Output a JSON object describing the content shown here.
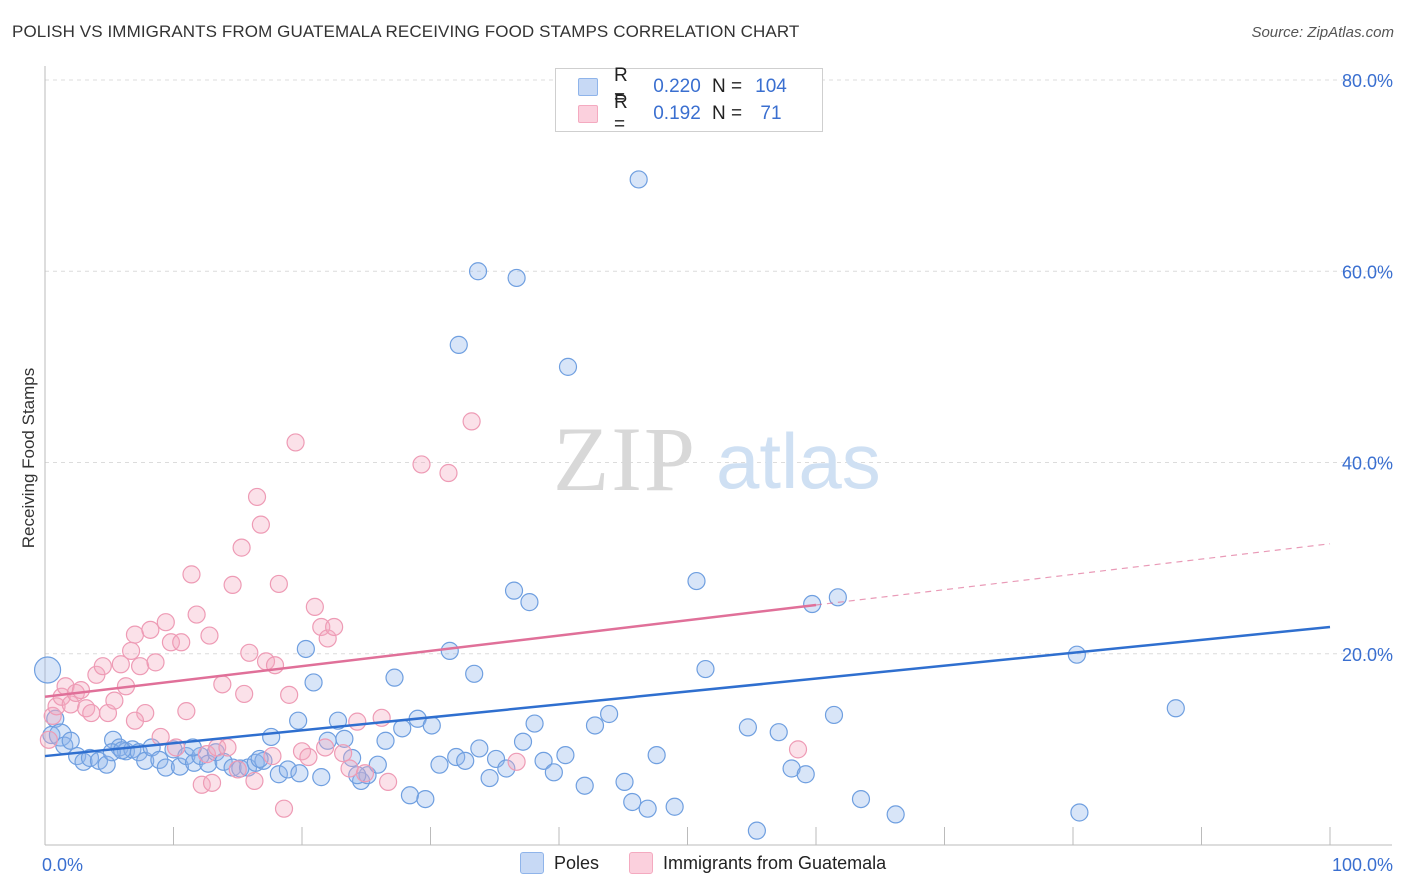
{
  "title": "POLISH VS IMMIGRANTS FROM GUATEMALA RECEIVING FOOD STAMPS CORRELATION CHART",
  "source": "Source: ZipAtlas.com",
  "watermark": {
    "zip": "ZIP",
    "atlas": "atlas"
  },
  "colors": {
    "poles": "#8fb4ea",
    "poles_line": "#2f6fcf",
    "guatemala": "#f4aac0",
    "guatemala_line": "#e07099",
    "tick_label": "#3a6fd0",
    "grid": "#dcdcdc"
  },
  "legend": {
    "rows": [
      {
        "r_label": "R =",
        "r_value": "0.220",
        "n_label": "N =",
        "n_value": "104"
      },
      {
        "r_label": "R =",
        "r_value": "0.192",
        "n_label": "N =",
        "n_value": "71"
      }
    ]
  },
  "bottom_legend": [
    "Poles",
    "Immigrants from Guatemala"
  ],
  "chart_data": {
    "type": "scatter",
    "ylabel": "Receiving Food Stamps",
    "xlim": [
      0,
      100
    ],
    "ylim": [
      0,
      80
    ],
    "x_tick_labels": [
      {
        "value": 0,
        "label": "0.0%"
      },
      {
        "value": 100,
        "label": "100.0%"
      }
    ],
    "y_tick_labels": [
      {
        "value": 20,
        "label": "20.0%"
      },
      {
        "value": 40,
        "label": "40.0%"
      },
      {
        "value": 60,
        "label": "60.0%"
      },
      {
        "value": 80,
        "label": "80.0%"
      }
    ],
    "y_gridlines": [
      20,
      40,
      60,
      80
    ],
    "series": [
      {
        "name": "Poles",
        "trend": {
          "x0": 0,
          "y0": 9.3,
          "x1": 100,
          "y1": 22.8
        },
        "points": [
          [
            0.2,
            18.3
          ],
          [
            0.5,
            11.5
          ],
          [
            0.8,
            13.2
          ],
          [
            1.2,
            11.5
          ],
          [
            1.5,
            10.4
          ],
          [
            2.0,
            10.9
          ],
          [
            2.5,
            9.3
          ],
          [
            3.0,
            8.7
          ],
          [
            3.5,
            9.1
          ],
          [
            4.2,
            8.8
          ],
          [
            4.8,
            8.4
          ],
          [
            5.3,
            11.0
          ],
          [
            5.8,
            10.2
          ],
          [
            6.3,
            9.8
          ],
          [
            6.8,
            10.0
          ],
          [
            7.3,
            9.7
          ],
          [
            7.8,
            8.8
          ],
          [
            8.3,
            10.2
          ],
          [
            8.9,
            8.9
          ],
          [
            9.4,
            8.1
          ],
          [
            10.0,
            10.0
          ],
          [
            10.5,
            8.2
          ],
          [
            11.0,
            9.3
          ],
          [
            11.6,
            8.6
          ],
          [
            12.1,
            9.3
          ],
          [
            12.7,
            8.5
          ],
          [
            13.3,
            9.7
          ],
          [
            13.9,
            8.7
          ],
          [
            14.6,
            8.1
          ],
          [
            15.2,
            8.0
          ],
          [
            15.8,
            8.1
          ],
          [
            16.4,
            8.6
          ],
          [
            17.0,
            8.8
          ],
          [
            17.6,
            11.3
          ],
          [
            18.2,
            7.4
          ],
          [
            18.9,
            7.9
          ],
          [
            19.7,
            13.0
          ],
          [
            20.3,
            20.5
          ],
          [
            20.9,
            17.0
          ],
          [
            21.5,
            7.1
          ],
          [
            22.0,
            10.9
          ],
          [
            22.8,
            13.0
          ],
          [
            23.3,
            11.1
          ],
          [
            23.9,
            9.1
          ],
          [
            24.6,
            6.7
          ],
          [
            25.1,
            7.3
          ],
          [
            25.9,
            8.4
          ],
          [
            26.5,
            10.9
          ],
          [
            27.2,
            17.5
          ],
          [
            27.8,
            12.2
          ],
          [
            28.4,
            5.2
          ],
          [
            29.0,
            13.2
          ],
          [
            29.6,
            4.8
          ],
          [
            30.1,
            12.5
          ],
          [
            30.7,
            8.4
          ],
          [
            31.5,
            20.3
          ],
          [
            32.0,
            9.2
          ],
          [
            32.7,
            8.8
          ],
          [
            33.4,
            17.9
          ],
          [
            33.8,
            10.1
          ],
          [
            34.6,
            7.0
          ],
          [
            35.1,
            9.0
          ],
          [
            35.9,
            8.0
          ],
          [
            36.5,
            26.6
          ],
          [
            37.2,
            10.8
          ],
          [
            37.7,
            25.4
          ],
          [
            38.1,
            12.7
          ],
          [
            38.8,
            8.8
          ],
          [
            39.6,
            7.6
          ],
          [
            40.5,
            9.4
          ],
          [
            42.0,
            6.2
          ],
          [
            42.8,
            12.5
          ],
          [
            43.9,
            13.7
          ],
          [
            45.1,
            6.6
          ],
          [
            45.7,
            4.5
          ],
          [
            46.2,
            69.6
          ],
          [
            46.9,
            3.8
          ],
          [
            47.6,
            9.4
          ],
          [
            49.0,
            4.0
          ],
          [
            50.7,
            27.6
          ],
          [
            51.4,
            18.4
          ],
          [
            54.7,
            12.3
          ],
          [
            55.4,
            1.5
          ],
          [
            57.1,
            11.8
          ],
          [
            58.1,
            8.0
          ],
          [
            59.2,
            7.4
          ],
          [
            59.7,
            25.2
          ],
          [
            61.7,
            25.9
          ],
          [
            61.4,
            13.6
          ],
          [
            63.5,
            4.8
          ],
          [
            66.2,
            3.2
          ],
          [
            80.3,
            19.9
          ],
          [
            80.5,
            3.4
          ],
          [
            88.0,
            14.3
          ],
          [
            32.2,
            52.3
          ],
          [
            33.7,
            60.0
          ],
          [
            36.7,
            59.3
          ],
          [
            40.7,
            50.0
          ],
          [
            16.7,
            9.0
          ],
          [
            5.2,
            9.7
          ],
          [
            6.0,
            9.9
          ],
          [
            11.5,
            10.2
          ],
          [
            19.8,
            7.5
          ],
          [
            24.3,
            7.3
          ]
        ]
      },
      {
        "name": "Immigrants from Guatemala",
        "trend": {
          "x0": 0,
          "y0": 15.5,
          "x1": 100,
          "y1": 31.5,
          "solid_until": 60
        },
        "points": [
          [
            0.3,
            11.0
          ],
          [
            0.6,
            13.5
          ],
          [
            0.9,
            14.5
          ],
          [
            1.3,
            15.5
          ],
          [
            1.6,
            16.6
          ],
          [
            2.0,
            14.7
          ],
          [
            2.4,
            15.9
          ],
          [
            2.8,
            16.2
          ],
          [
            3.2,
            14.3
          ],
          [
            3.6,
            13.8
          ],
          [
            4.0,
            17.8
          ],
          [
            4.5,
            18.7
          ],
          [
            4.9,
            13.8
          ],
          [
            5.4,
            15.1
          ],
          [
            5.9,
            18.9
          ],
          [
            6.3,
            16.6
          ],
          [
            6.7,
            20.3
          ],
          [
            7.0,
            22.0
          ],
          [
            7.4,
            18.7
          ],
          [
            7.8,
            13.8
          ],
          [
            8.2,
            22.5
          ],
          [
            8.6,
            19.1
          ],
          [
            9.0,
            11.3
          ],
          [
            9.4,
            23.3
          ],
          [
            9.8,
            21.2
          ],
          [
            10.2,
            10.2
          ],
          [
            10.6,
            21.2
          ],
          [
            11.0,
            14.0
          ],
          [
            11.4,
            28.3
          ],
          [
            11.8,
            24.1
          ],
          [
            12.2,
            6.3
          ],
          [
            12.6,
            9.5
          ],
          [
            13.0,
            6.5
          ],
          [
            13.4,
            10.2
          ],
          [
            13.8,
            16.8
          ],
          [
            14.2,
            10.2
          ],
          [
            14.6,
            27.2
          ],
          [
            15.0,
            7.9
          ],
          [
            15.5,
            15.8
          ],
          [
            15.9,
            20.1
          ],
          [
            16.3,
            6.7
          ],
          [
            16.8,
            33.5
          ],
          [
            17.2,
            19.2
          ],
          [
            17.7,
            9.3
          ],
          [
            18.2,
            27.3
          ],
          [
            18.6,
            3.8
          ],
          [
            19.0,
            15.7
          ],
          [
            19.5,
            42.1
          ],
          [
            20.0,
            9.8
          ],
          [
            20.5,
            9.2
          ],
          [
            21.0,
            24.9
          ],
          [
            21.5,
            22.8
          ],
          [
            22.0,
            21.6
          ],
          [
            22.5,
            22.8
          ],
          [
            23.2,
            9.6
          ],
          [
            23.7,
            8.0
          ],
          [
            24.3,
            12.9
          ],
          [
            24.9,
            7.5
          ],
          [
            26.2,
            13.3
          ],
          [
            26.7,
            6.6
          ],
          [
            29.3,
            39.8
          ],
          [
            31.4,
            38.9
          ],
          [
            33.2,
            44.3
          ],
          [
            36.7,
            8.7
          ],
          [
            58.6,
            10.0
          ],
          [
            16.5,
            36.4
          ],
          [
            15.3,
            31.1
          ],
          [
            12.8,
            21.9
          ],
          [
            17.9,
            18.8
          ],
          [
            21.8,
            10.2
          ],
          [
            7.0,
            13.0
          ]
        ]
      }
    ]
  }
}
